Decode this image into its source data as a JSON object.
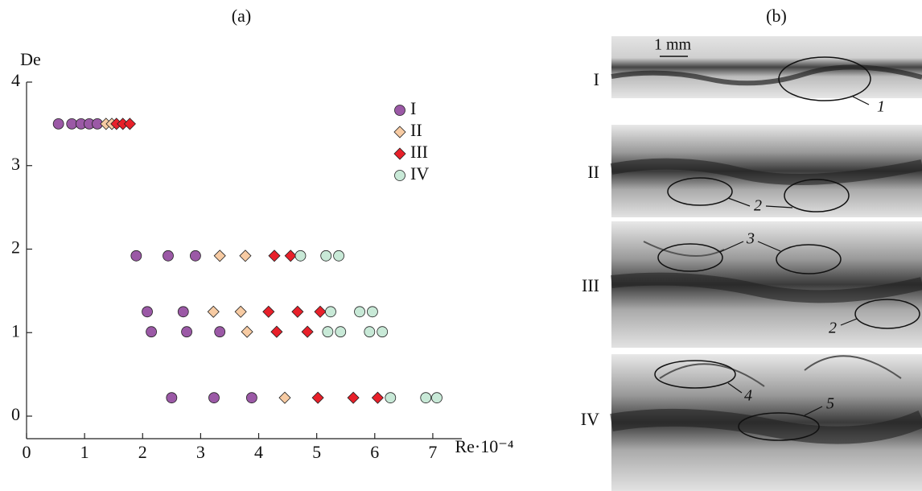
{
  "chart_data": {
    "type": "scatter",
    "title": "(a)",
    "xlabel": "Re·10⁻⁴",
    "ylabel": "De",
    "xlim": [
      0,
      7.5
    ],
    "ylim": [
      -0.27,
      4
    ],
    "xticks": [
      0,
      1,
      2,
      3,
      4,
      5,
      6,
      7
    ],
    "yticks": [
      0,
      1,
      2,
      3,
      4
    ],
    "legend": "upper right",
    "series": [
      {
        "name": "I",
        "color": "#9b59a6",
        "marker": "circle",
        "x": [
          0.55,
          0.78,
          0.94,
          1.08,
          1.22,
          1.89,
          2.44,
          2.91,
          2.08,
          2.7,
          2.15,
          2.76,
          3.33,
          2.5,
          3.23,
          3.88
        ],
        "y": [
          3.5,
          3.5,
          3.5,
          3.5,
          3.5,
          1.92,
          1.92,
          1.92,
          1.25,
          1.25,
          1.01,
          1.01,
          1.01,
          0.22,
          0.22,
          0.22
        ]
      },
      {
        "name": "II",
        "color": "#f7cba3",
        "marker": "diamond",
        "x": [
          1.37,
          1.47,
          3.33,
          3.77,
          3.22,
          3.69,
          3.8,
          4.45
        ],
        "y": [
          3.5,
          3.5,
          1.92,
          1.92,
          1.25,
          1.25,
          1.01,
          0.22
        ]
      },
      {
        "name": "III",
        "color": "#e8202a",
        "marker": "diamond",
        "x": [
          1.55,
          1.66,
          1.78,
          4.27,
          4.55,
          4.17,
          4.67,
          5.06,
          4.31,
          4.84,
          5.02,
          5.63,
          6.05
        ],
        "y": [
          3.5,
          3.5,
          3.5,
          1.92,
          1.92,
          1.25,
          1.25,
          1.25,
          1.01,
          1.01,
          0.22,
          0.22,
          0.22
        ]
      },
      {
        "name": "IV",
        "color": "#c8e9d7",
        "marker": "circle",
        "x": [
          4.72,
          5.16,
          5.38,
          5.24,
          5.74,
          5.96,
          5.19,
          5.41,
          5.91,
          6.13,
          6.27,
          6.88,
          7.07
        ],
        "y": [
          1.92,
          1.92,
          1.92,
          1.25,
          1.25,
          1.25,
          1.01,
          1.01,
          1.01,
          1.01,
          0.22,
          0.22,
          0.22
        ]
      }
    ]
  },
  "panel_b": {
    "title": "(b)",
    "scale_label": "1 mm",
    "rows": [
      {
        "label": "I",
        "annotations": [
          "1"
        ]
      },
      {
        "label": "II",
        "annotations": [
          "2"
        ]
      },
      {
        "label": "III",
        "annotations": [
          "3",
          "2"
        ]
      },
      {
        "label": "IV",
        "annotations": [
          "4",
          "5"
        ]
      }
    ]
  }
}
